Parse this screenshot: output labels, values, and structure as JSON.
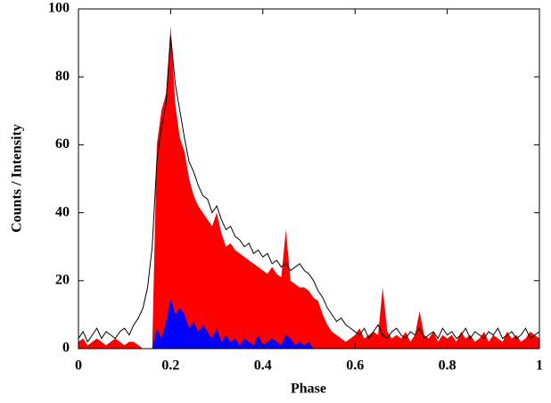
{
  "chart_data": {
    "type": "area",
    "xlabel": "Phase",
    "ylabel": "Counts / Intensity",
    "x": [
      0,
      0.01,
      0.02,
      0.03,
      0.04,
      0.05,
      0.06,
      0.07,
      0.08,
      0.09,
      0.1,
      0.11,
      0.12,
      0.13,
      0.14,
      0.15,
      0.16,
      0.17,
      0.18,
      0.19,
      0.2,
      0.21,
      0.22,
      0.23,
      0.24,
      0.25,
      0.26,
      0.27,
      0.28,
      0.29,
      0.3,
      0.31,
      0.32,
      0.33,
      0.34,
      0.35,
      0.36,
      0.37,
      0.38,
      0.39,
      0.4,
      0.41,
      0.42,
      0.43,
      0.44,
      0.45,
      0.46,
      0.47,
      0.48,
      0.49,
      0.5,
      0.51,
      0.52,
      0.53,
      0.54,
      0.55,
      0.56,
      0.57,
      0.58,
      0.59,
      0.6,
      0.61,
      0.62,
      0.63,
      0.64,
      0.65,
      0.66,
      0.67,
      0.68,
      0.69,
      0.7,
      0.71,
      0.72,
      0.73,
      0.74,
      0.75,
      0.76,
      0.77,
      0.78,
      0.79,
      0.8,
      0.81,
      0.82,
      0.83,
      0.84,
      0.85,
      0.86,
      0.87,
      0.88,
      0.89,
      0.9,
      0.91,
      0.92,
      0.93,
      0.94,
      0.95,
      0.96,
      0.97,
      0.98,
      0.99,
      1
    ],
    "series": [
      {
        "style": "area",
        "color": "#ff0000",
        "values": [
          2,
          3,
          1,
          2,
          3,
          2,
          1,
          2,
          3,
          2,
          1,
          2,
          2,
          1,
          0,
          0,
          0,
          60,
          70,
          75,
          95,
          72,
          62,
          58,
          50,
          45,
          42,
          40,
          38,
          36,
          40,
          34,
          30,
          31,
          29,
          28,
          27,
          26,
          25,
          24,
          23,
          22,
          24,
          22,
          21,
          35,
          20,
          19,
          18,
          18,
          17,
          15,
          14,
          10,
          7,
          5,
          4,
          3,
          2,
          3,
          4,
          6,
          3,
          4,
          5,
          4,
          18,
          5,
          3,
          4,
          3,
          5,
          2,
          4,
          11,
          4,
          3,
          5,
          2,
          4,
          3,
          4,
          2,
          5,
          3,
          4,
          2,
          3,
          5,
          2,
          4,
          3,
          2,
          5,
          3,
          4,
          2,
          3,
          5,
          4,
          3
        ]
      },
      {
        "style": "area",
        "color": "#0000ff",
        "values": [
          0,
          0,
          0,
          0,
          0,
          0,
          0,
          0,
          0,
          0,
          0,
          0,
          0,
          0,
          0,
          0,
          0,
          6,
          3,
          8,
          15,
          10,
          12,
          10,
          6,
          8,
          5,
          7,
          5,
          3,
          6,
          2,
          4,
          2,
          3,
          1,
          3,
          2,
          1,
          4,
          1,
          2,
          3,
          2,
          1,
          4,
          3,
          1,
          2,
          1,
          2,
          0,
          0,
          0,
          0,
          0,
          0,
          0,
          0,
          0,
          0,
          0,
          0,
          0,
          0,
          0,
          0,
          0,
          0,
          0,
          0,
          0,
          0,
          0,
          0,
          0,
          0,
          0,
          0,
          0,
          0,
          0,
          0,
          0,
          0,
          0,
          0,
          0,
          0,
          0,
          0,
          0,
          0,
          0,
          0,
          0,
          0,
          0,
          0,
          0,
          0
        ]
      },
      {
        "style": "line",
        "color": "#000000",
        "values": [
          3,
          5,
          2,
          4,
          6,
          3,
          5,
          4,
          3,
          5,
          6,
          4,
          7,
          9,
          12,
          18,
          30,
          55,
          65,
          72,
          92,
          78,
          70,
          62,
          55,
          52,
          48,
          45,
          44,
          40,
          42,
          38,
          35,
          36,
          33,
          32,
          30,
          31,
          28,
          29,
          27,
          28,
          25,
          26,
          24,
          25,
          23,
          24,
          25,
          23,
          22,
          20,
          17,
          15,
          12,
          10,
          8,
          9,
          7,
          6,
          5,
          4,
          6,
          3,
          5,
          7,
          4,
          3,
          5,
          6,
          4,
          3,
          5,
          4,
          6,
          3,
          4,
          5,
          3,
          6,
          4,
          5,
          3,
          4,
          6,
          3,
          5,
          4,
          3,
          5,
          4,
          6,
          3,
          4,
          5,
          3,
          4,
          6,
          3,
          4,
          5
        ]
      }
    ],
    "xlim": [
      0,
      1
    ],
    "xticks": [
      0,
      0.2,
      0.4,
      0.6,
      0.8,
      1
    ],
    "ylim": [
      0,
      100
    ],
    "yticks": [
      0,
      20,
      40,
      60,
      80,
      100
    ]
  }
}
